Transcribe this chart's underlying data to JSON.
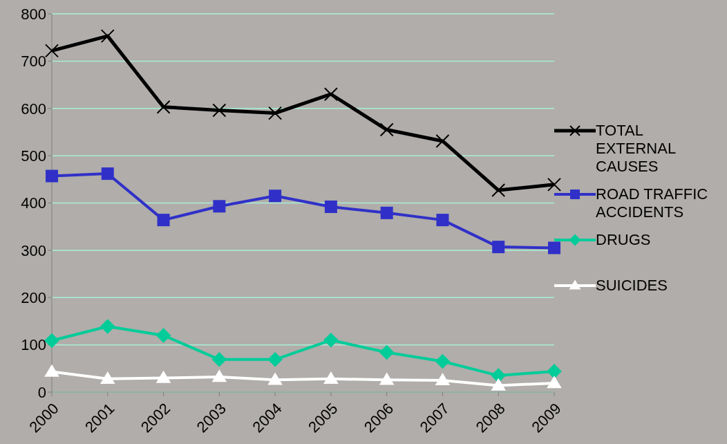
{
  "chart_data": {
    "type": "line",
    "categories": [
      "2000",
      "2001",
      "2002",
      "2003",
      "2004",
      "2005",
      "2006",
      "2007",
      "2008",
      "2009"
    ],
    "series": [
      {
        "name": "TOTAL EXTERNAL CAUSES",
        "color": "#000000",
        "marker": "cross",
        "values": [
          722,
          753,
          603,
          596,
          590,
          630,
          555,
          531,
          427,
          439
        ]
      },
      {
        "name": "ROAD TRAFFIC ACCIDENTS",
        "color": "#3030c8",
        "marker": "square",
        "values": [
          457,
          462,
          364,
          393,
          415,
          392,
          379,
          364,
          307,
          305
        ]
      },
      {
        "name": "DRUGS",
        "color": "#00cc99",
        "marker": "diamond",
        "values": [
          109,
          139,
          120,
          69,
          69,
          110,
          84,
          65,
          35,
          44
        ]
      },
      {
        "name": "SUICIDES",
        "color": "#ffffff",
        "marker": "triangle",
        "values": [
          43,
          28,
          30,
          32,
          26,
          28,
          26,
          25,
          14,
          19
        ]
      }
    ],
    "ylim": [
      0,
      800
    ],
    "yticks": [
      0,
      100,
      200,
      300,
      400,
      500,
      600,
      700,
      800
    ],
    "grid": "y",
    "legend": "right"
  }
}
